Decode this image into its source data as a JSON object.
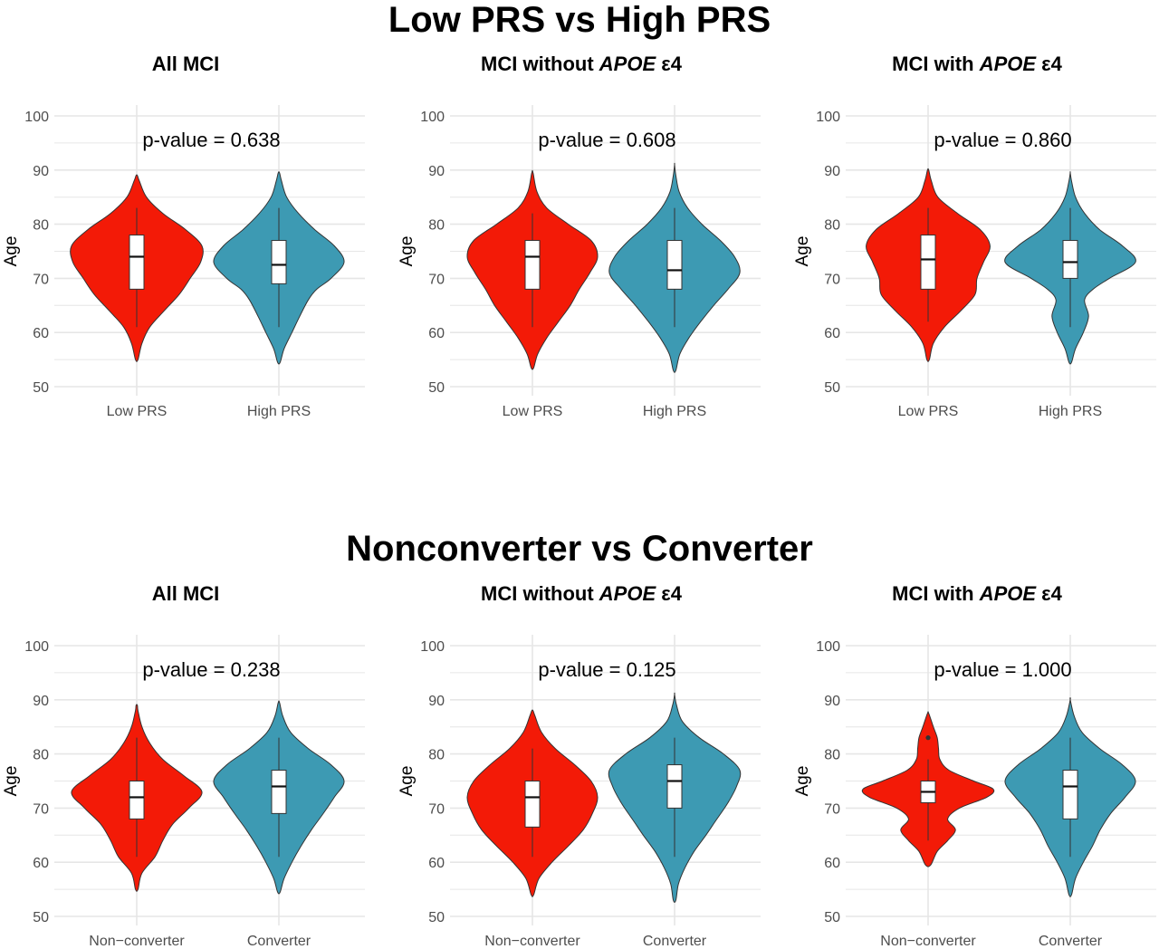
{
  "sections": [
    {
      "title": "Low PRS vs High PRS",
      "panels": [
        {
          "title_pre": "All MCI",
          "title_em": "",
          "title_post": ""
        },
        {
          "title_pre": "MCI without ",
          "title_em": "APOE",
          "title_post": " ε4"
        },
        {
          "title_pre": "MCI with ",
          "title_em": "APOE",
          "title_post": " ε4"
        }
      ]
    },
    {
      "title": "Nonconverter vs Converter",
      "panels": [
        {
          "title_pre": "All MCI",
          "title_em": "",
          "title_post": ""
        },
        {
          "title_pre": "MCI without ",
          "title_em": "APOE",
          "title_post": " ε4"
        },
        {
          "title_pre": "MCI with ",
          "title_em": "APOE",
          "title_post": " ε4"
        }
      ]
    }
  ],
  "colors": {
    "group1": "#f31a07",
    "group2": "#3d9ab3",
    "grid": "#e6e6e6",
    "outline": "#333333"
  },
  "chart_data": [
    {
      "type": "violin",
      "title": "All MCI",
      "ylabel": "Age",
      "ylim": [
        50,
        100
      ],
      "yticks": [
        50,
        60,
        70,
        80,
        90,
        100
      ],
      "annotation": "p-value = 0.638",
      "categories": [
        "Low PRS",
        "High PRS"
      ],
      "series": [
        {
          "name": "Low PRS",
          "min": 55,
          "max": 89,
          "box": {
            "lower_whisker": 61,
            "q1": 68,
            "median": 74,
            "q3": 78,
            "upper_whisker": 83
          },
          "density": [
            [
              55,
              0.02
            ],
            [
              58,
              0.08
            ],
            [
              61,
              0.2
            ],
            [
              64,
              0.42
            ],
            [
              67,
              0.65
            ],
            [
              70,
              0.82
            ],
            [
              73,
              0.98
            ],
            [
              76,
              1.0
            ],
            [
              79,
              0.75
            ],
            [
              82,
              0.4
            ],
            [
              85,
              0.15
            ],
            [
              88,
              0.04
            ],
            [
              89,
              0.01
            ]
          ],
          "outliers": []
        },
        {
          "name": "High PRS",
          "min": 54.5,
          "max": 89.5,
          "box": {
            "lower_whisker": 61,
            "q1": 69,
            "median": 72.5,
            "q3": 77,
            "upper_whisker": 83
          },
          "density": [
            [
              54.5,
              0.02
            ],
            [
              57,
              0.08
            ],
            [
              60,
              0.2
            ],
            [
              63,
              0.32
            ],
            [
              66,
              0.45
            ],
            [
              68,
              0.58
            ],
            [
              70,
              0.8
            ],
            [
              73,
              1.0
            ],
            [
              76,
              0.85
            ],
            [
              79,
              0.55
            ],
            [
              82,
              0.3
            ],
            [
              85,
              0.12
            ],
            [
              88,
              0.04
            ],
            [
              89.5,
              0.01
            ]
          ],
          "outliers": []
        }
      ]
    },
    {
      "type": "violin",
      "title": "MCI without APOE ε4",
      "ylabel": "Age",
      "ylim": [
        50,
        100
      ],
      "yticks": [
        50,
        60,
        70,
        80,
        90,
        100
      ],
      "annotation": "p-value = 0.608",
      "categories": [
        "Low PRS",
        "High PRS"
      ],
      "series": [
        {
          "name": "Low PRS",
          "min": 53.5,
          "max": 89.5,
          "box": {
            "lower_whisker": 61,
            "q1": 68,
            "median": 74,
            "q3": 77,
            "upper_whisker": 82
          },
          "density": [
            [
              53.5,
              0.02
            ],
            [
              56,
              0.08
            ],
            [
              59,
              0.22
            ],
            [
              62,
              0.4
            ],
            [
              65,
              0.58
            ],
            [
              68,
              0.72
            ],
            [
              71,
              0.88
            ],
            [
              74,
              1.0
            ],
            [
              77,
              0.9
            ],
            [
              80,
              0.55
            ],
            [
              83,
              0.22
            ],
            [
              86,
              0.07
            ],
            [
              89.5,
              0.01
            ]
          ],
          "outliers": []
        },
        {
          "name": "High PRS",
          "min": 53,
          "max": 91,
          "box": {
            "lower_whisker": 61,
            "q1": 68,
            "median": 71.5,
            "q3": 77,
            "upper_whisker": 83
          },
          "density": [
            [
              53,
              0.02
            ],
            [
              56,
              0.08
            ],
            [
              59,
              0.22
            ],
            [
              62,
              0.4
            ],
            [
              65,
              0.6
            ],
            [
              68,
              0.82
            ],
            [
              71,
              1.0
            ],
            [
              74,
              0.92
            ],
            [
              77,
              0.7
            ],
            [
              80,
              0.42
            ],
            [
              83,
              0.2
            ],
            [
              86,
              0.07
            ],
            [
              89,
              0.02
            ],
            [
              91,
              0.0
            ]
          ],
          "outliers": []
        }
      ]
    },
    {
      "type": "violin",
      "title": "MCI with APOE ε4",
      "ylabel": "Age",
      "ylim": [
        50,
        100
      ],
      "yticks": [
        50,
        60,
        70,
        80,
        90,
        100
      ],
      "annotation": "p-value = 0.860",
      "categories": [
        "Low PRS",
        "High PRS"
      ],
      "series": [
        {
          "name": "Low PRS",
          "min": 55,
          "max": 90,
          "box": {
            "lower_whisker": 62,
            "q1": 68,
            "median": 73.5,
            "q3": 78,
            "upper_whisker": 83
          },
          "density": [
            [
              55,
              0.02
            ],
            [
              58,
              0.08
            ],
            [
              61,
              0.25
            ],
            [
              64,
              0.5
            ],
            [
              67,
              0.72
            ],
            [
              70,
              0.75
            ],
            [
              73,
              0.85
            ],
            [
              76,
              0.95
            ],
            [
              79,
              0.8
            ],
            [
              82,
              0.45
            ],
            [
              85,
              0.15
            ],
            [
              88,
              0.05
            ],
            [
              90,
              0.01
            ]
          ],
          "outliers": []
        },
        {
          "name": "High PRS",
          "min": 54.5,
          "max": 89.5,
          "box": {
            "lower_whisker": 61,
            "q1": 70,
            "median": 73,
            "q3": 77,
            "upper_whisker": 83
          },
          "density": [
            [
              54.5,
              0.02
            ],
            [
              57,
              0.08
            ],
            [
              60,
              0.2
            ],
            [
              63,
              0.28
            ],
            [
              66,
              0.22
            ],
            [
              68,
              0.35
            ],
            [
              70,
              0.6
            ],
            [
              73,
              1.0
            ],
            [
              76,
              0.8
            ],
            [
              79,
              0.45
            ],
            [
              82,
              0.22
            ],
            [
              85,
              0.08
            ],
            [
              88,
              0.02
            ],
            [
              89.5,
              0.0
            ]
          ],
          "outliers": []
        }
      ]
    },
    {
      "type": "violin",
      "title": "All MCI",
      "ylabel": "Age",
      "ylim": [
        50,
        100
      ],
      "yticks": [
        50,
        60,
        70,
        80,
        90,
        100
      ],
      "annotation": "p-value = 0.238",
      "categories": [
        "Non−converter",
        "Converter"
      ],
      "series": [
        {
          "name": "Non−converter",
          "min": 55,
          "max": 89,
          "box": {
            "lower_whisker": 61,
            "q1": 68,
            "median": 72,
            "q3": 75,
            "upper_whisker": 83
          },
          "density": [
            [
              55,
              0.02
            ],
            [
              58,
              0.08
            ],
            [
              61,
              0.28
            ],
            [
              64,
              0.4
            ],
            [
              67,
              0.55
            ],
            [
              70,
              0.8
            ],
            [
              73,
              1.0
            ],
            [
              76,
              0.72
            ],
            [
              79,
              0.4
            ],
            [
              82,
              0.2
            ],
            [
              85,
              0.08
            ],
            [
              88,
              0.02
            ],
            [
              89,
              0.01
            ]
          ],
          "outliers": []
        },
        {
          "name": "Converter",
          "min": 54.5,
          "max": 89.5,
          "box": {
            "lower_whisker": 61,
            "q1": 69,
            "median": 74,
            "q3": 77,
            "upper_whisker": 83
          },
          "density": [
            [
              54.5,
              0.02
            ],
            [
              57,
              0.08
            ],
            [
              60,
              0.2
            ],
            [
              63,
              0.34
            ],
            [
              66,
              0.5
            ],
            [
              69,
              0.68
            ],
            [
              72,
              0.85
            ],
            [
              75,
              1.0
            ],
            [
              78,
              0.8
            ],
            [
              81,
              0.45
            ],
            [
              84,
              0.18
            ],
            [
              87,
              0.06
            ],
            [
              89.5,
              0.01
            ]
          ],
          "outliers": []
        }
      ]
    },
    {
      "type": "violin",
      "title": "MCI without APOE ε4",
      "ylabel": "Age",
      "ylim": [
        50,
        100
      ],
      "yticks": [
        50,
        60,
        70,
        80,
        90,
        100
      ],
      "annotation": "p-value = 0.125",
      "categories": [
        "Non−converter",
        "Converter"
      ],
      "series": [
        {
          "name": "Non−converter",
          "min": 54,
          "max": 88,
          "box": {
            "lower_whisker": 61,
            "q1": 66.5,
            "median": 72,
            "q3": 75,
            "upper_whisker": 81
          },
          "density": [
            [
              54,
              0.02
            ],
            [
              57,
              0.1
            ],
            [
              60,
              0.3
            ],
            [
              63,
              0.55
            ],
            [
              66,
              0.78
            ],
            [
              69,
              0.92
            ],
            [
              72,
              1.0
            ],
            [
              75,
              0.9
            ],
            [
              78,
              0.65
            ],
            [
              81,
              0.35
            ],
            [
              84,
              0.14
            ],
            [
              87,
              0.04
            ],
            [
              88,
              0.01
            ]
          ],
          "outliers": []
        },
        {
          "name": "Converter",
          "min": 53,
          "max": 91,
          "box": {
            "lower_whisker": 61,
            "q1": 70,
            "median": 75,
            "q3": 78,
            "upper_whisker": 83
          },
          "density": [
            [
              53,
              0.02
            ],
            [
              56,
              0.06
            ],
            [
              59,
              0.16
            ],
            [
              62,
              0.3
            ],
            [
              65,
              0.48
            ],
            [
              68,
              0.65
            ],
            [
              71,
              0.82
            ],
            [
              74,
              0.95
            ],
            [
              77,
              1.0
            ],
            [
              80,
              0.75
            ],
            [
              83,
              0.38
            ],
            [
              86,
              0.12
            ],
            [
              89,
              0.03
            ],
            [
              91,
              0.0
            ]
          ],
          "outliers": []
        }
      ]
    },
    {
      "type": "violin",
      "title": "MCI with APOE ε4",
      "ylabel": "Age",
      "ylim": [
        50,
        100
      ],
      "yticks": [
        50,
        60,
        70,
        80,
        90,
        100
      ],
      "annotation": "p-value = 1.000",
      "categories": [
        "Non−converter",
        "Converter"
      ],
      "series": [
        {
          "name": "Non−converter",
          "min": 59.5,
          "max": 87.5,
          "box": {
            "lower_whisker": 64,
            "q1": 71,
            "median": 73,
            "q3": 75,
            "upper_whisker": 79
          },
          "density": [
            [
              59.5,
              0.04
            ],
            [
              62,
              0.14
            ],
            [
              64,
              0.3
            ],
            [
              66,
              0.42
            ],
            [
              68,
              0.3
            ],
            [
              70,
              0.48
            ],
            [
              72,
              0.9
            ],
            [
              73.5,
              1.0
            ],
            [
              75,
              0.7
            ],
            [
              77,
              0.32
            ],
            [
              79,
              0.18
            ],
            [
              81,
              0.16
            ],
            [
              83,
              0.14
            ],
            [
              85,
              0.08
            ],
            [
              87.5,
              0.01
            ]
          ],
          "outliers": [
            83
          ]
        },
        {
          "name": "Converter",
          "min": 54,
          "max": 90,
          "box": {
            "lower_whisker": 61,
            "q1": 68,
            "median": 74,
            "q3": 77,
            "upper_whisker": 83
          },
          "density": [
            [
              54,
              0.02
            ],
            [
              57,
              0.08
            ],
            [
              60,
              0.2
            ],
            [
              63,
              0.34
            ],
            [
              66,
              0.46
            ],
            [
              69,
              0.62
            ],
            [
              72,
              0.84
            ],
            [
              75,
              1.0
            ],
            [
              78,
              0.8
            ],
            [
              81,
              0.45
            ],
            [
              84,
              0.18
            ],
            [
              87,
              0.06
            ],
            [
              90,
              0.0
            ]
          ],
          "outliers": []
        }
      ]
    }
  ]
}
